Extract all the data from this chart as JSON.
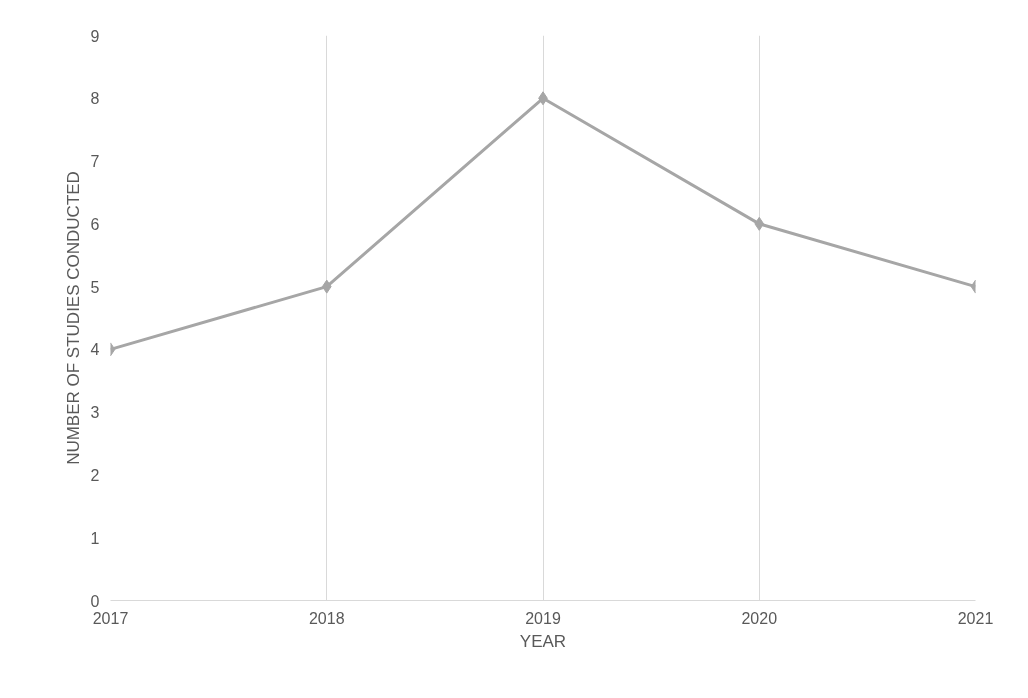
{
  "chart_data": {
    "type": "line",
    "xlabel": "YEAR",
    "ylabel": "NUMBER OF STUDIES CONDUCTED",
    "x": [
      2017,
      2018,
      2019,
      2020,
      2021
    ],
    "series": [
      {
        "color": "#a6a6a6",
        "values": [
          4,
          5,
          8,
          6,
          5
        ]
      }
    ],
    "xlim": [
      2017,
      2021
    ],
    "xticks": [
      2017,
      2018,
      2019,
      2020,
      2021
    ],
    "ylim": [
      0,
      9
    ],
    "yticks": [
      0,
      1,
      2,
      3,
      4,
      5,
      6,
      7,
      8,
      9
    ],
    "grid": "x",
    "marker": "diamond",
    "line_style": "solid"
  }
}
